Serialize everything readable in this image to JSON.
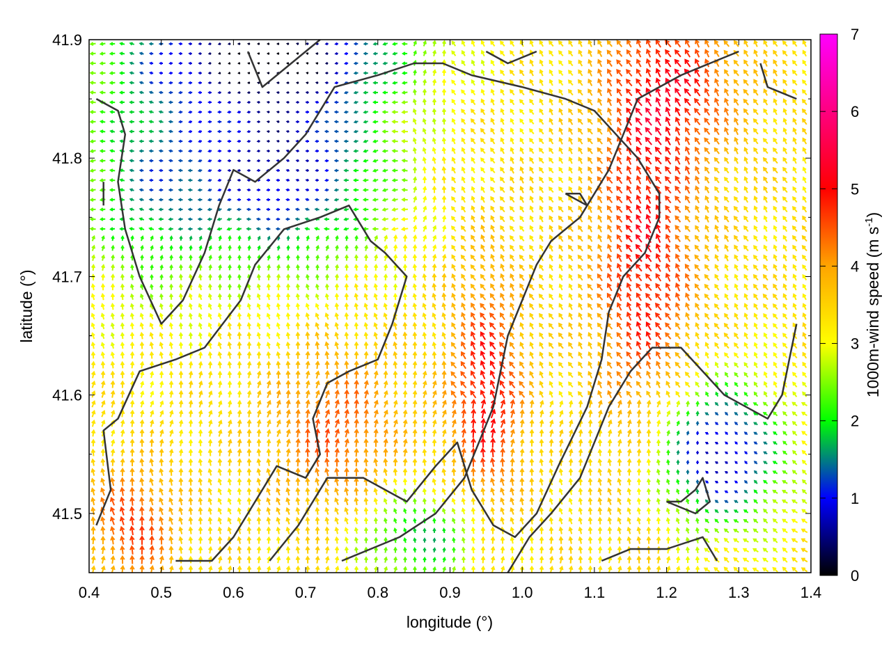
{
  "chart_data": {
    "type": "vector-field",
    "title": "",
    "xlabel": "longitude (°)",
    "ylabel": "latitude (°)",
    "xlim": [
      0.4,
      1.4
    ],
    "ylim": [
      41.45,
      41.9
    ],
    "x_ticks": [
      0.4,
      0.5,
      0.6,
      0.7,
      0.8,
      0.9,
      1.0,
      1.1,
      1.2,
      1.3,
      1.4
    ],
    "x_tick_labels": [
      "0.4",
      "0.5",
      "0.6",
      "0.7",
      "0.8",
      "0.9",
      "1.0",
      "1.1",
      "1.2",
      "1.3",
      "1.4"
    ],
    "y_ticks": [
      41.5,
      41.6,
      41.7,
      41.8,
      41.9
    ],
    "y_tick_labels": [
      "41.5",
      "41.6",
      "41.7",
      "41.8",
      "41.9"
    ],
    "grid": false,
    "colorbar": {
      "label_main": "1000m-wind speed (m s",
      "label_sup": "-1",
      "label_end": ")",
      "range": [
        0,
        7
      ],
      "ticks": [
        0,
        1,
        2,
        3,
        4,
        5,
        6,
        7
      ],
      "tick_labels": [
        "0",
        "1",
        "2",
        "3",
        "4",
        "5",
        "6",
        "7"
      ],
      "colors": [
        "#000000",
        "#0000ff",
        "#00ff00",
        "#ffff00",
        "#ffa500",
        "#ff0000",
        "#ff00ff"
      ]
    },
    "contours": [
      [
        [
          0.41,
          41.49
        ],
        [
          0.43,
          41.52
        ],
        [
          0.42,
          41.57
        ],
        [
          0.44,
          41.58
        ],
        [
          0.47,
          41.62
        ],
        [
          0.52,
          41.63
        ],
        [
          0.56,
          41.64
        ],
        [
          0.61,
          41.68
        ],
        [
          0.63,
          41.71
        ],
        [
          0.67,
          41.74
        ],
        [
          0.72,
          41.75
        ],
        [
          0.76,
          41.76
        ],
        [
          0.79,
          41.73
        ],
        [
          0.81,
          41.72
        ],
        [
          0.84,
          41.7
        ],
        [
          0.82,
          41.66
        ],
        [
          0.8,
          41.63
        ],
        [
          0.76,
          41.62
        ],
        [
          0.73,
          41.61
        ],
        [
          0.71,
          41.58
        ],
        [
          0.72,
          41.55
        ],
        [
          0.7,
          41.53
        ],
        [
          0.66,
          41.54
        ],
        [
          0.63,
          41.51
        ],
        [
          0.6,
          41.48
        ],
        [
          0.57,
          41.46
        ],
        [
          0.52,
          41.46
        ]
      ],
      [
        [
          0.65,
          41.46
        ],
        [
          0.69,
          41.49
        ],
        [
          0.73,
          41.53
        ],
        [
          0.78,
          41.53
        ],
        [
          0.84,
          41.51
        ],
        [
          0.88,
          41.54
        ],
        [
          0.91,
          41.56
        ],
        [
          0.93,
          41.52
        ],
        [
          0.96,
          41.49
        ],
        [
          0.99,
          41.48
        ],
        [
          1.02,
          41.5
        ],
        [
          1.05,
          41.54
        ],
        [
          1.09,
          41.59
        ],
        [
          1.11,
          41.63
        ],
        [
          1.12,
          41.67
        ],
        [
          1.14,
          41.7
        ],
        [
          1.17,
          41.72
        ],
        [
          1.19,
          41.75
        ],
        [
          1.19,
          41.77
        ],
        [
          1.16,
          41.8
        ],
        [
          1.13,
          41.82
        ],
        [
          1.1,
          41.84
        ],
        [
          1.06,
          41.85
        ],
        [
          1.0,
          41.86
        ],
        [
          0.93,
          41.87
        ],
        [
          0.89,
          41.88
        ],
        [
          0.85,
          41.88
        ],
        [
          0.8,
          41.87
        ],
        [
          0.74,
          41.86
        ],
        [
          0.7,
          41.82
        ],
        [
          0.67,
          41.8
        ],
        [
          0.63,
          41.78
        ],
        [
          0.6,
          41.79
        ],
        [
          0.58,
          41.76
        ],
        [
          0.56,
          41.72
        ],
        [
          0.53,
          41.68
        ],
        [
          0.5,
          41.66
        ],
        [
          0.47,
          41.7
        ],
        [
          0.45,
          41.74
        ],
        [
          0.44,
          41.78
        ],
        [
          0.45,
          41.82
        ],
        [
          0.44,
          41.84
        ],
        [
          0.41,
          41.85
        ]
      ],
      [
        [
          0.75,
          41.46
        ],
        [
          0.79,
          41.47
        ],
        [
          0.83,
          41.48
        ],
        [
          0.88,
          41.5
        ],
        [
          0.92,
          41.53
        ],
        [
          0.94,
          41.56
        ],
        [
          0.96,
          41.59
        ],
        [
          0.97,
          41.62
        ],
        [
          0.98,
          41.65
        ],
        [
          1.0,
          41.68
        ],
        [
          1.02,
          41.71
        ],
        [
          1.04,
          41.73
        ],
        [
          1.06,
          41.74
        ],
        [
          1.08,
          41.75
        ],
        [
          1.1,
          41.77
        ],
        [
          1.12,
          41.79
        ],
        [
          1.14,
          41.82
        ],
        [
          1.16,
          41.85
        ],
        [
          1.19,
          41.86
        ],
        [
          1.22,
          41.87
        ],
        [
          1.26,
          41.88
        ],
        [
          1.3,
          41.89
        ]
      ],
      [
        [
          0.98,
          41.45
        ],
        [
          1.01,
          41.48
        ],
        [
          1.04,
          41.5
        ],
        [
          1.08,
          41.53
        ],
        [
          1.1,
          41.56
        ],
        [
          1.12,
          41.59
        ],
        [
          1.15,
          41.62
        ],
        [
          1.18,
          41.64
        ],
        [
          1.22,
          41.64
        ],
        [
          1.25,
          41.62
        ],
        [
          1.28,
          41.6
        ],
        [
          1.31,
          41.59
        ],
        [
          1.34,
          41.58
        ],
        [
          1.36,
          41.6
        ],
        [
          1.37,
          41.63
        ],
        [
          1.38,
          41.66
        ]
      ],
      [
        [
          1.11,
          41.46
        ],
        [
          1.15,
          41.47
        ],
        [
          1.2,
          41.47
        ],
        [
          1.25,
          41.48
        ],
        [
          1.27,
          41.46
        ]
      ],
      [
        [
          1.2,
          41.51
        ],
        [
          1.22,
          41.51
        ],
        [
          1.24,
          41.52
        ],
        [
          1.25,
          41.53
        ],
        [
          1.26,
          41.51
        ],
        [
          1.24,
          41.5
        ],
        [
          1.2,
          41.51
        ]
      ],
      [
        [
          1.06,
          41.77
        ],
        [
          1.08,
          41.77
        ],
        [
          1.09,
          41.76
        ],
        [
          1.06,
          41.77
        ]
      ],
      [
        [
          0.42,
          41.76
        ],
        [
          0.42,
          41.78
        ]
      ],
      [
        [
          0.62,
          41.89
        ],
        [
          0.64,
          41.86
        ],
        [
          0.66,
          41.87
        ],
        [
          0.7,
          41.89
        ],
        [
          0.72,
          41.9
        ]
      ],
      [
        [
          1.33,
          41.88
        ],
        [
          1.34,
          41.86
        ],
        [
          1.38,
          41.85
        ]
      ],
      [
        [
          0.95,
          41.89
        ],
        [
          0.98,
          41.88
        ],
        [
          1.02,
          41.89
        ]
      ]
    ],
    "wind_field_description_source": "vectors rendered procedurally from speed/direction fields"
  }
}
